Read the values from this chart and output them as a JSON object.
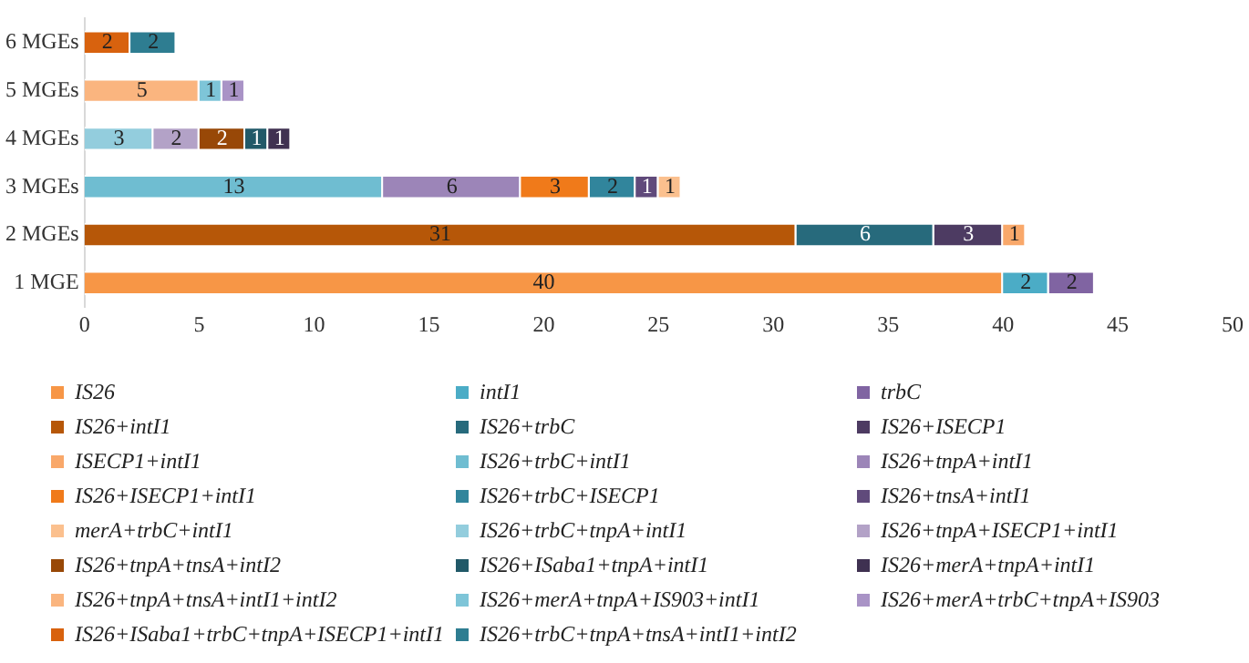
{
  "chart_data": {
    "type": "bar",
    "orientation": "horizontal",
    "stacked": true,
    "data_labels": true,
    "grid": false,
    "legend": "bottom",
    "categories": [
      "6 MGEs",
      "5 MGEs",
      "4 MGEs",
      "3 MGEs",
      "2 MGEs",
      "1 MGE"
    ],
    "xlim": [
      0,
      50
    ],
    "xticks": [
      0,
      5,
      10,
      15,
      20,
      25,
      30,
      35,
      40,
      45,
      50
    ],
    "series": [
      {
        "name": "IS26",
        "color": "#f79646",
        "values": [
          null,
          null,
          null,
          null,
          null,
          40
        ]
      },
      {
        "name": "intI1",
        "color": "#4bacc6",
        "values": [
          null,
          null,
          null,
          null,
          null,
          2
        ]
      },
      {
        "name": "trbC",
        "color": "#8064a2",
        "values": [
          null,
          null,
          null,
          null,
          null,
          2
        ]
      },
      {
        "name": "IS26+intI1",
        "color": "#b65708",
        "values": [
          null,
          null,
          null,
          null,
          31,
          null
        ]
      },
      {
        "name": "IS26+trbC",
        "color": "#276a7c",
        "values": [
          null,
          null,
          null,
          null,
          6,
          null
        ]
      },
      {
        "name": "IS26+ISECP1",
        "color": "#4d3b62",
        "values": [
          null,
          null,
          null,
          null,
          3,
          null
        ]
      },
      {
        "name": "ISECP1+intI1",
        "color": "#f9a86a",
        "values": [
          null,
          null,
          null,
          null,
          1,
          null
        ]
      },
      {
        "name": "IS26+trbC+intI1",
        "color": "#6fbdd1",
        "values": [
          null,
          null,
          null,
          13,
          null,
          null
        ]
      },
      {
        "name": "IS26+tnpA+intI1",
        "color": "#9c85b8",
        "values": [
          null,
          null,
          null,
          6,
          null,
          null
        ]
      },
      {
        "name": "IS26+ISECP1+intI1",
        "color": "#f07a1a",
        "values": [
          null,
          null,
          null,
          3,
          null,
          null
        ]
      },
      {
        "name": "IS26+trbC+ISECP1",
        "color": "#31859c",
        "values": [
          null,
          null,
          null,
          2,
          null,
          null
        ]
      },
      {
        "name": "IS26+tnsA+intI1",
        "color": "#604a7b",
        "values": [
          null,
          null,
          null,
          1,
          null,
          null
        ]
      },
      {
        "name": "merA+trbC+intI1",
        "color": "#fbc08e",
        "values": [
          null,
          null,
          null,
          1,
          null,
          null
        ]
      },
      {
        "name": "IS26+trbC+tnpA+intI1",
        "color": "#93cddd",
        "values": [
          null,
          null,
          3,
          null,
          null,
          null
        ]
      },
      {
        "name": "IS26+tnpA+ISECP1+intI1",
        "color": "#b3a2c7",
        "values": [
          null,
          null,
          2,
          null,
          null,
          null
        ]
      },
      {
        "name": "IS26+tnpA+tnsA+intI2",
        "color": "#984807",
        "values": [
          null,
          null,
          2,
          null,
          null,
          null
        ]
      },
      {
        "name": "IS26+ISaba1+tnpA+intI1",
        "color": "#215968",
        "values": [
          null,
          null,
          1,
          null,
          null,
          null
        ]
      },
      {
        "name": "IS26+merA+tnpA+intI1",
        "color": "#3f3151",
        "values": [
          null,
          null,
          1,
          null,
          null,
          null
        ]
      },
      {
        "name": "IS26+tnpA+tnsA+intI1+intI2",
        "color": "#fab57f",
        "values": [
          null,
          5,
          null,
          null,
          null,
          null
        ]
      },
      {
        "name": "IS26+merA+tnpA+IS903+intI1",
        "color": "#7ec5d8",
        "values": [
          null,
          1,
          null,
          null,
          null,
          null
        ]
      },
      {
        "name": "IS26+merA+trbC+tnpA+IS903",
        "color": "#a993c6",
        "values": [
          null,
          1,
          null,
          null,
          null,
          null
        ]
      },
      {
        "name": "IS26+ISaba1+trbC+tnpA+ISECP1+intI1",
        "color": "#d8620e",
        "values": [
          2,
          null,
          null,
          null,
          null,
          null
        ]
      },
      {
        "name": "IS26+trbC+tnpA+tnsA+intI1+intI2",
        "color": "#2e7d91",
        "values": [
          2,
          null,
          null,
          null,
          null,
          null
        ]
      }
    ]
  }
}
